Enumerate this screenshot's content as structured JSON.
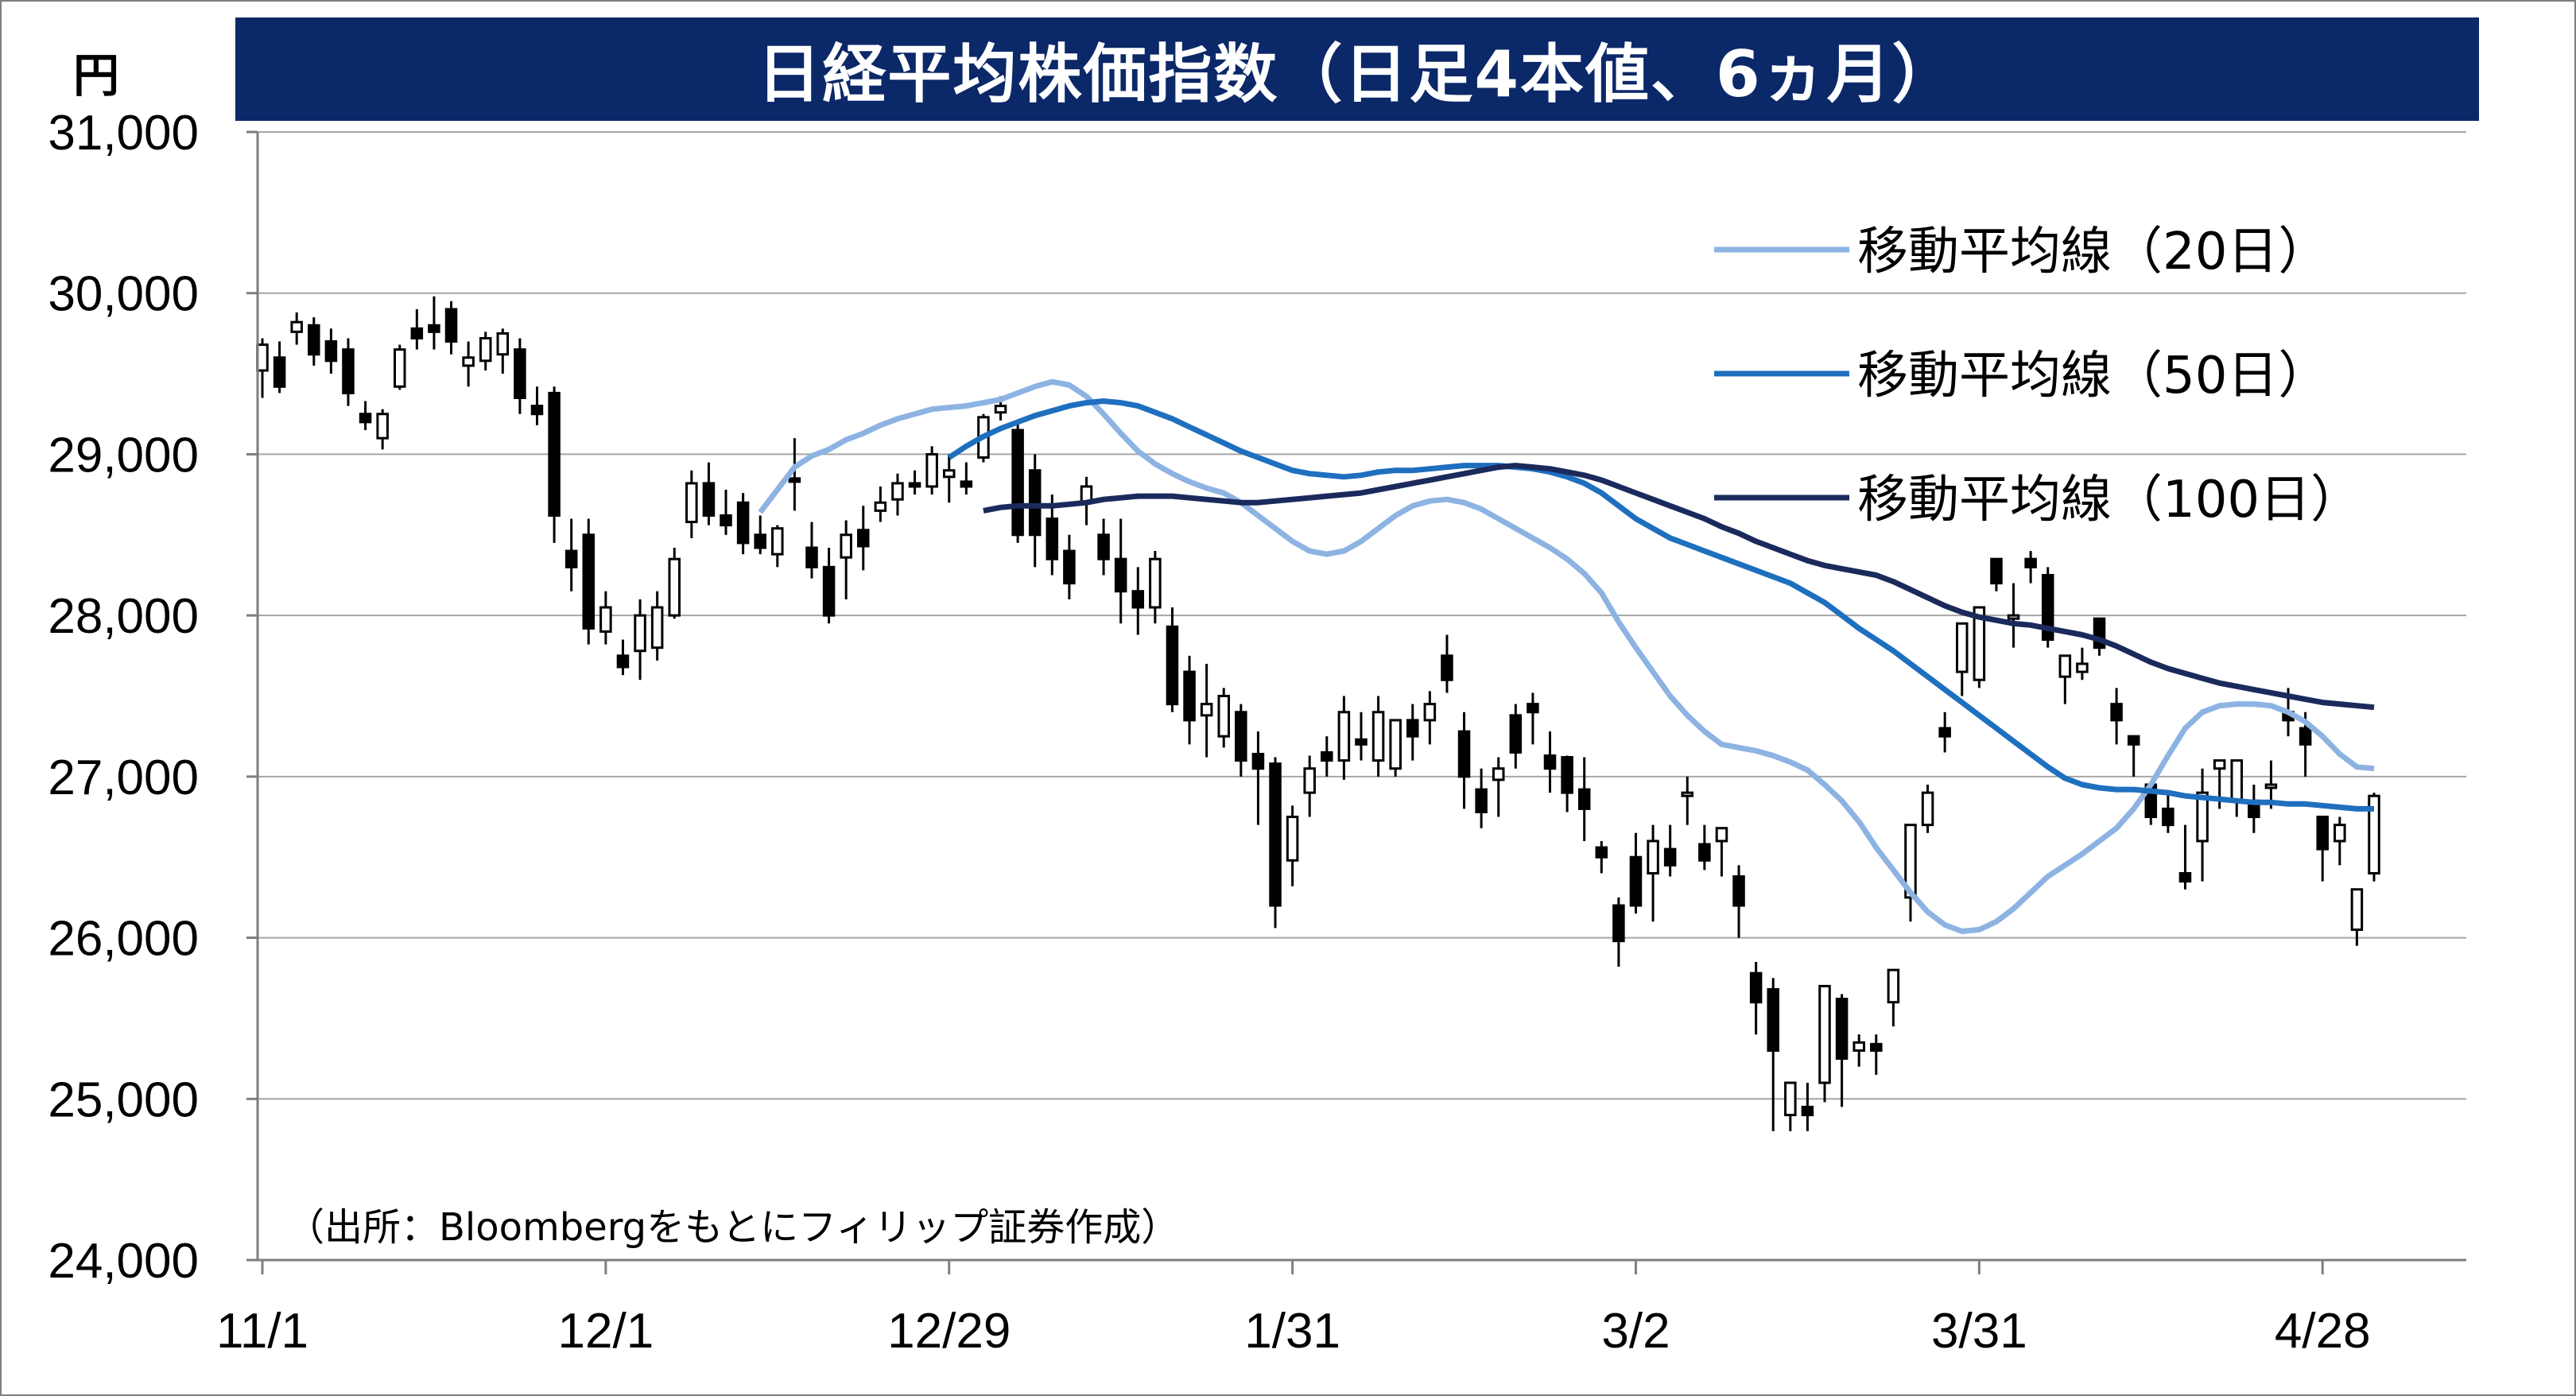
{
  "title": "日経平均株価指数（日足4本値、6ヵ月）",
  "unit": "円",
  "source": "（出所：Bloombergをもとにフィリップ証券作成）",
  "colors": {
    "title_bg": "#0b2868",
    "ma20": "#8db3e2",
    "ma50": "#1f6fbf",
    "ma100": "#1b2a5c",
    "gridline": "#a6a6a6",
    "axis": "#7f7f7f"
  },
  "chart_data": {
    "type": "candlestick",
    "ylim": [
      24000,
      31000
    ],
    "yticks": [
      24000,
      25000,
      26000,
      27000,
      28000,
      29000,
      30000,
      31000
    ],
    "ytick_labels": [
      "24,000",
      "25,000",
      "26,000",
      "27,000",
      "28,000",
      "29,000",
      "30,000",
      "31,000"
    ],
    "xticks": [
      {
        "label": "11/1",
        "index": 0
      },
      {
        "label": "12/1",
        "index": 20
      },
      {
        "label": "12/29",
        "index": 40
      },
      {
        "label": "1/31",
        "index": 60
      },
      {
        "label": "3/2",
        "index": 80
      },
      {
        "label": "3/31",
        "index": 100
      },
      {
        "label": "4/28",
        "index": 120
      }
    ],
    "grid": true,
    "legend_position": "top-right",
    "series": [
      {
        "name": "移動平均線（20日）",
        "color": "#8db3e2",
        "values": [
          28640,
          28780,
          28920,
          28990,
          29030,
          29090,
          29130,
          29180,
          29220,
          29250,
          29280,
          29290,
          29300,
          29320,
          29340,
          29380,
          29420,
          29450,
          29430,
          29360,
          29250,
          29130,
          29020,
          28940,
          28880,
          28830,
          28790,
          28760,
          28700,
          28620,
          28540,
          28460,
          28400,
          28380,
          28400,
          28460,
          28540,
          28620,
          28680,
          28710,
          28720,
          28700,
          28660,
          28600,
          28540,
          28480,
          28420,
          28350,
          28260,
          28140,
          27960,
          27800,
          27650,
          27500,
          27380,
          27280,
          27200,
          27180,
          27160,
          27130,
          27090,
          27040,
          26950,
          26850,
          26720,
          26560,
          26420,
          26280,
          26160,
          26080,
          26040,
          26050,
          26100,
          26180,
          26280,
          26380,
          26450,
          26520,
          26600,
          26680,
          26800,
          26950,
          27130,
          27300,
          27400,
          27440,
          27450,
          27450,
          27440,
          27400,
          27340,
          27250,
          27140,
          27060,
          27050
        ]
      },
      {
        "name": "移動平均線（50日）",
        "color": "#1f6fbf",
        "values": [
          28980,
          29050,
          29110,
          29160,
          29200,
          29240,
          29270,
          29300,
          29320,
          29330,
          29320,
          29300,
          29260,
          29220,
          29170,
          29120,
          29070,
          29020,
          28980,
          28940,
          28900,
          28880,
          28870,
          28860,
          28870,
          28890,
          28900,
          28900,
          28910,
          28920,
          28930,
          28930,
          28930,
          28920,
          28910,
          28890,
          28860,
          28820,
          28760,
          28680,
          28600,
          28540,
          28480,
          28440,
          28400,
          28360,
          28320,
          28280,
          28240,
          28200,
          28140,
          28080,
          28000,
          27920,
          27850,
          27780,
          27700,
          27620,
          27540,
          27460,
          27380,
          27300,
          27220,
          27140,
          27060,
          26990,
          26950,
          26930,
          26920,
          26920,
          26910,
          26900,
          26880,
          26870,
          26860,
          26850,
          26840,
          26840,
          26830,
          26830,
          26820,
          26810,
          26800,
          26800
        ]
      },
      {
        "name": "移動平均線（100日）",
        "color": "#1b2a5c",
        "values": [
          28650,
          28670,
          28680,
          28680,
          28680,
          28690,
          28700,
          28720,
          28730,
          28740,
          28740,
          28740,
          28730,
          28720,
          28710,
          28700,
          28700,
          28710,
          28720,
          28730,
          28740,
          28750,
          28760,
          28780,
          28800,
          28820,
          28840,
          28860,
          28880,
          28900,
          28920,
          28930,
          28920,
          28910,
          28890,
          28870,
          28840,
          28800,
          28760,
          28720,
          28680,
          28640,
          28600,
          28550,
          28510,
          28460,
          28420,
          28380,
          28340,
          28310,
          28290,
          28270,
          28250,
          28210,
          28160,
          28110,
          28060,
          28020,
          27990,
          27970,
          27950,
          27940,
          27920,
          27900,
          27880,
          27850,
          27810,
          27760,
          27710,
          27670,
          27640,
          27610,
          27580,
          27560,
          27540,
          27520,
          27500,
          27480,
          27460,
          27450,
          27440,
          27430
        ]
      }
    ],
    "ohlc": [
      [
        29520,
        29720,
        29350,
        29680
      ],
      [
        29600,
        29700,
        29380,
        29420
      ],
      [
        29760,
        29880,
        29680,
        29820
      ],
      [
        29800,
        29850,
        29550,
        29620
      ],
      [
        29700,
        29780,
        29500,
        29580
      ],
      [
        29650,
        29720,
        29300,
        29380
      ],
      [
        29250,
        29330,
        29150,
        29200
      ],
      [
        29100,
        29280,
        29030,
        29250
      ],
      [
        29420,
        29680,
        29400,
        29650
      ],
      [
        29780,
        29900,
        29650,
        29720
      ],
      [
        29800,
        29980,
        29650,
        29760
      ],
      [
        29900,
        29950,
        29620,
        29700
      ],
      [
        29550,
        29700,
        29420,
        29600
      ],
      [
        29580,
        29760,
        29520,
        29720
      ],
      [
        29620,
        29780,
        29500,
        29750
      ],
      [
        29650,
        29720,
        29250,
        29350
      ],
      [
        29300,
        29420,
        29180,
        29250
      ],
      [
        29380,
        29420,
        28450,
        28620
      ],
      [
        28400,
        28600,
        28150,
        28300
      ],
      [
        28500,
        28600,
        27820,
        27920
      ],
      [
        27900,
        28150,
        27820,
        28050
      ],
      [
        27750,
        27850,
        27630,
        27680
      ],
      [
        27780,
        28100,
        27600,
        28000
      ],
      [
        27800,
        28150,
        27720,
        28050
      ],
      [
        28000,
        28420,
        27980,
        28350
      ],
      [
        28580,
        28900,
        28480,
        28820
      ],
      [
        28820,
        28950,
        28560,
        28620
      ],
      [
        28620,
        28780,
        28500,
        28560
      ],
      [
        28700,
        28760,
        28380,
        28450
      ],
      [
        28500,
        28620,
        28380,
        28420
      ],
      [
        28380,
        28560,
        28300,
        28540
      ],
      [
        28850,
        29100,
        28650,
        28830
      ],
      [
        28420,
        28580,
        28230,
        28300
      ],
      [
        28300,
        28420,
        27950,
        28000
      ],
      [
        28360,
        28590,
        28100,
        28500
      ],
      [
        28530,
        28680,
        28280,
        28430
      ],
      [
        28650,
        28800,
        28580,
        28700
      ],
      [
        28720,
        28880,
        28620,
        28820
      ],
      [
        28820,
        28900,
        28750,
        28800
      ],
      [
        28800,
        29050,
        28750,
        29000
      ],
      [
        28860,
        29000,
        28700,
        28900
      ],
      [
        28830,
        28950,
        28750,
        28800
      ],
      [
        28980,
        29250,
        28950,
        29230
      ],
      [
        29260,
        29360,
        29210,
        29300
      ],
      [
        29150,
        29200,
        28450,
        28500
      ],
      [
        28900,
        29000,
        28300,
        28500
      ],
      [
        28600,
        28750,
        28250,
        28350
      ],
      [
        28400,
        28500,
        28100,
        28200
      ],
      [
        28700,
        28860,
        28560,
        28800
      ],
      [
        28500,
        28600,
        28250,
        28350
      ],
      [
        28350,
        28600,
        27950,
        28150
      ],
      [
        28150,
        28300,
        27880,
        28050
      ],
      [
        28050,
        28400,
        27950,
        28350
      ],
      [
        27930,
        28050,
        27400,
        27450
      ],
      [
        27650,
        27750,
        27200,
        27350
      ],
      [
        27380,
        27700,
        27120,
        27450
      ],
      [
        27250,
        27550,
        27180,
        27500
      ],
      [
        27400,
        27450,
        27000,
        27100
      ],
      [
        27140,
        27280,
        26700,
        27050
      ],
      [
        27080,
        27120,
        26060,
        26200
      ],
      [
        26480,
        26820,
        26320,
        26750
      ],
      [
        26900,
        27130,
        26750,
        27050
      ],
      [
        27150,
        27250,
        27000,
        27100
      ],
      [
        27100,
        27500,
        26980,
        27400
      ],
      [
        27230,
        27400,
        27100,
        27200
      ],
      [
        27100,
        27500,
        27000,
        27400
      ],
      [
        27050,
        27320,
        27000,
        27350
      ],
      [
        27350,
        27450,
        27100,
        27250
      ],
      [
        27350,
        27530,
        27200,
        27450
      ],
      [
        27750,
        27880,
        27520,
        27600
      ],
      [
        27280,
        27400,
        26800,
        27000
      ],
      [
        26920,
        27050,
        26680,
        26780
      ],
      [
        26980,
        27120,
        26750,
        27050
      ],
      [
        27380,
        27450,
        27050,
        27150
      ],
      [
        27450,
        27520,
        27200,
        27400
      ],
      [
        27130,
        27280,
        26900,
        27050
      ],
      [
        27120,
        27130,
        26780,
        26900
      ],
      [
        26920,
        27120,
        26600,
        26800
      ],
      [
        26560,
        26600,
        26400,
        26500
      ],
      [
        26200,
        26250,
        25820,
        25980
      ],
      [
        26500,
        26650,
        26150,
        26200
      ],
      [
        26400,
        26700,
        26100,
        26600
      ],
      [
        26550,
        26700,
        26380,
        26450
      ],
      [
        26890,
        27000,
        26700,
        26900
      ],
      [
        26580,
        26700,
        26420,
        26480
      ],
      [
        26600,
        26680,
        26380,
        26680
      ],
      [
        26380,
        26450,
        26000,
        26200
      ],
      [
        25780,
        25850,
        25400,
        25600
      ],
      [
        25680,
        25750,
        24800,
        25300
      ],
      [
        24900,
        25050,
        24800,
        25100
      ],
      [
        24950,
        25100,
        24800,
        24900
      ],
      [
        25100,
        25700,
        24980,
        25700
      ],
      [
        25620,
        25650,
        24950,
        25250
      ],
      [
        25300,
        25400,
        25200,
        25350
      ],
      [
        25340,
        25400,
        25150,
        25300
      ],
      [
        25600,
        25800,
        25450,
        25800
      ],
      [
        26250,
        26700,
        26100,
        26700
      ],
      [
        26700,
        26950,
        26650,
        26900
      ],
      [
        27300,
        27400,
        27150,
        27250
      ],
      [
        27650,
        27900,
        27500,
        27950
      ],
      [
        27600,
        28050,
        27550,
        28050
      ],
      [
        28350,
        28350,
        28150,
        28200
      ],
      [
        28000,
        28200,
        27800,
        28000
      ],
      [
        28350,
        28400,
        28200,
        28300
      ],
      [
        28250,
        28300,
        27800,
        27850
      ],
      [
        27620,
        27720,
        27450,
        27750
      ],
      [
        27650,
        27800,
        27600,
        27700
      ],
      [
        27980,
        27980,
        27750,
        27800
      ],
      [
        27450,
        27550,
        27200,
        27350
      ],
      [
        27250,
        27250,
        27000,
        27200
      ],
      [
        26950,
        26950,
        26700,
        26750
      ],
      [
        26800,
        26900,
        26650,
        26700
      ],
      [
        26400,
        26700,
        26300,
        26350
      ],
      [
        26600,
        27050,
        26350,
        26900
      ],
      [
        27050,
        27100,
        26800,
        27100
      ],
      [
        26850,
        27050,
        26750,
        27100
      ],
      [
        26850,
        26950,
        26650,
        26750
      ],
      [
        26950,
        27100,
        26800,
        26950
      ],
      [
        27400,
        27550,
        27250,
        27350
      ],
      [
        27300,
        27400,
        27000,
        27200
      ],
      [
        26750,
        26750,
        26350,
        26550
      ],
      [
        26600,
        26750,
        26450,
        26700
      ],
      [
        26050,
        26300,
        25950,
        26300
      ],
      [
        26400,
        26900,
        26350,
        26880
      ]
    ]
  }
}
